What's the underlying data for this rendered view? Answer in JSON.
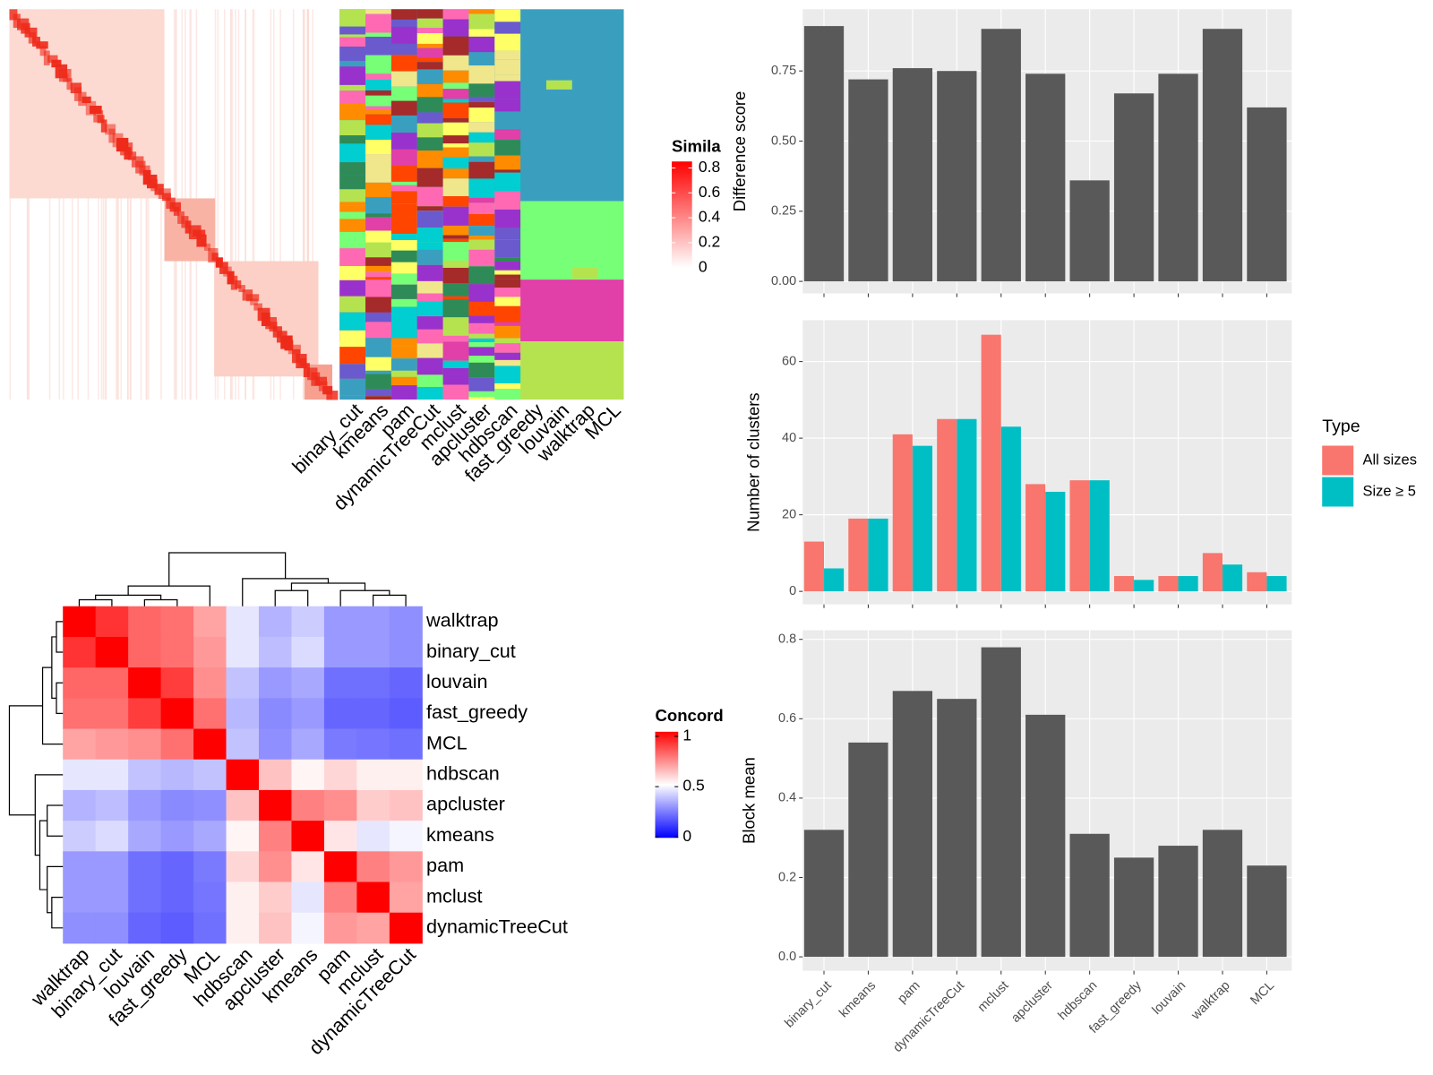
{
  "chart_data": [
    {
      "type": "similarity-heatmap",
      "legend_title": "Simila",
      "legend_ticks": [
        0,
        0.2,
        0.4,
        0.6,
        0.8
      ],
      "colors": [
        "#FFFFFF",
        "#FF0000"
      ],
      "column_labels": [
        "binary_cut",
        "kmeans",
        "pam",
        "dynamicTreeCut",
        "mclust",
        "apcluster",
        "hdbscan",
        "fast_greedy",
        "louvain",
        "walktrap",
        "MCL"
      ]
    },
    {
      "type": "heatmap",
      "legend_title": "Concord",
      "legend_ticks": [
        0,
        0.5,
        1
      ],
      "colors": [
        "#0000FF",
        "#FFFFFF",
        "#FF0000"
      ],
      "rows": [
        "walktrap",
        "binary_cut",
        "louvain",
        "fast_greedy",
        "MCL",
        "hdbscan",
        "apcluster",
        "kmeans",
        "pam",
        "mclust",
        "dynamicTreeCut"
      ],
      "columns": [
        "walktrap",
        "binary_cut",
        "louvain",
        "fast_greedy",
        "MCL",
        "hdbscan",
        "apcluster",
        "kmeans",
        "pam",
        "mclust",
        "dynamicTreeCut"
      ],
      "values": [
        [
          1,
          0.9,
          0.8,
          0.78,
          0.68,
          0.45,
          0.35,
          0.4,
          0.3,
          0.3,
          0.28
        ],
        [
          0.9,
          1,
          0.8,
          0.78,
          0.7,
          0.45,
          0.37,
          0.43,
          0.3,
          0.3,
          0.28
        ],
        [
          0.8,
          0.8,
          1,
          0.88,
          0.72,
          0.38,
          0.3,
          0.33,
          0.22,
          0.22,
          0.2
        ],
        [
          0.78,
          0.78,
          0.88,
          1,
          0.78,
          0.36,
          0.27,
          0.3,
          0.2,
          0.2,
          0.18
        ],
        [
          0.68,
          0.7,
          0.72,
          0.78,
          1,
          0.38,
          0.28,
          0.33,
          0.24,
          0.23,
          0.22
        ],
        [
          0.45,
          0.45,
          0.38,
          0.36,
          0.38,
          1,
          0.62,
          0.52,
          0.58,
          0.53,
          0.53
        ],
        [
          0.35,
          0.37,
          0.3,
          0.27,
          0.28,
          0.62,
          1,
          0.75,
          0.72,
          0.6,
          0.62
        ],
        [
          0.4,
          0.43,
          0.33,
          0.3,
          0.33,
          0.52,
          0.75,
          1,
          0.55,
          0.45,
          0.48
        ],
        [
          0.3,
          0.3,
          0.22,
          0.2,
          0.24,
          0.58,
          0.72,
          0.55,
          1,
          0.75,
          0.7
        ],
        [
          0.3,
          0.3,
          0.22,
          0.2,
          0.23,
          0.53,
          0.6,
          0.45,
          0.75,
          1,
          0.68
        ],
        [
          0.28,
          0.28,
          0.2,
          0.18,
          0.22,
          0.53,
          0.62,
          0.48,
          0.7,
          0.68,
          1
        ]
      ]
    },
    {
      "type": "bar",
      "y_label": "Difference score",
      "color": "#595959",
      "values": [
        0.91,
        0.72,
        0.76,
        0.75,
        0.9,
        0.74,
        0.36,
        0.67,
        0.74,
        0.9,
        0.62
      ],
      "ylim": [
        -0.043,
        0.97
      ],
      "yticks": [
        {
          "value": 0,
          "label": "0.00"
        },
        0.25,
        {
          "value": 0.5,
          "label": "0.50"
        },
        0.75
      ],
      "grid": true
    },
    {
      "type": "grouped-bar",
      "y_label": "Number of clusters",
      "legend_title": "Type",
      "series": [
        {
          "name": "All sizes",
          "color": "#F8766D",
          "values": [
            13,
            19,
            41,
            45,
            67,
            28,
            29,
            4,
            4,
            10,
            5
          ]
        },
        {
          "name": "Size ≥ 5",
          "color": "#00BFC4",
          "values": [
            6,
            19,
            38,
            45,
            43,
            26,
            29,
            3,
            4,
            7,
            4
          ]
        }
      ],
      "ylim": [
        -3.4,
        70.8
      ],
      "yticks": [
        0,
        20,
        40,
        60
      ],
      "grid": true
    },
    {
      "type": "bar",
      "y_label": "Block mean",
      "color": "#595959",
      "categories": [
        "binary_cut",
        "kmeans",
        "pam",
        "dynamicTreeCut",
        "mclust",
        "apcluster",
        "hdbscan",
        "fast_greedy",
        "louvain",
        "walktrap",
        "MCL"
      ],
      "values": [
        0.32,
        0.54,
        0.67,
        0.65,
        0.78,
        0.61,
        0.31,
        0.25,
        0.28,
        0.32,
        0.23
      ],
      "ylim": [
        -0.035,
        0.823
      ],
      "yticks": [
        {
          "value": 0,
          "label": "0.0"
        },
        0.2,
        0.4,
        0.6,
        0.8
      ],
      "grid": true
    }
  ]
}
